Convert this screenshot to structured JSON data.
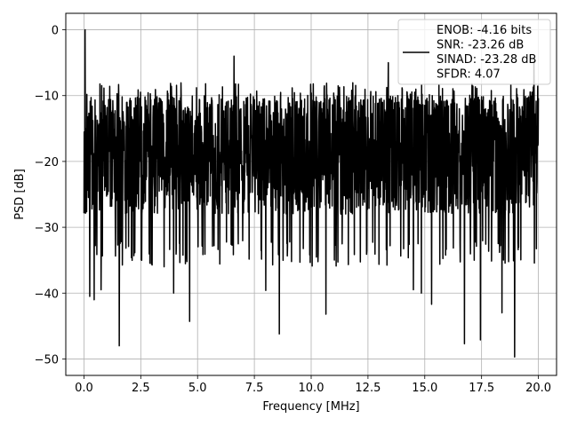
{
  "chart_data": {
    "type": "line",
    "xlabel": "Frequency [MHz]",
    "ylabel": "PSD [dB]",
    "xlim": [
      -0.8,
      20.8
    ],
    "ylim": [
      -52.5,
      2.5
    ],
    "xticks": [
      0,
      2.5,
      5,
      7.5,
      10,
      12.5,
      15,
      17.5,
      20
    ],
    "xtick_labels": [
      "0.0",
      "2.5",
      "5.0",
      "7.5",
      "10.0",
      "12.5",
      "15.0",
      "17.5",
      "20.0"
    ],
    "yticks": [
      0,
      -10,
      -20,
      -30,
      -40,
      -50
    ],
    "ytick_labels": [
      "0",
      "−10",
      "−20",
      "−30",
      "−40",
      "−50"
    ],
    "grid": true,
    "legend_position": "top-right",
    "legend": [
      "ENOB: -4.16 bits",
      "SNR: -23.26 dB",
      "SINAD: -23.28 dB",
      "SFDR: 4.07"
    ],
    "series": [
      {
        "color": "#000000",
        "x_range": [
          0,
          20
        ],
        "points": 2048,
        "typical_range": [
          -28,
          -10
        ],
        "notable_points": [
          {
            "x": 0.05,
            "y": 0
          },
          {
            "x": 0.25,
            "y": -40.5
          },
          {
            "x": 0.45,
            "y": -41
          },
          {
            "x": 0.75,
            "y": -39.5
          },
          {
            "x": 1.55,
            "y": -48
          },
          {
            "x": 3.95,
            "y": -40
          },
          {
            "x": 4.65,
            "y": -44.3
          },
          {
            "x": 6.6,
            "y": -4
          },
          {
            "x": 8.0,
            "y": -39.6
          },
          {
            "x": 8.6,
            "y": -46.2
          },
          {
            "x": 10.65,
            "y": -43.2
          },
          {
            "x": 13.4,
            "y": -5
          },
          {
            "x": 14.5,
            "y": -39.5
          },
          {
            "x": 14.85,
            "y": -40
          },
          {
            "x": 15.3,
            "y": -41.7
          },
          {
            "x": 16.75,
            "y": -47.7
          },
          {
            "x": 17.45,
            "y": -47.1
          },
          {
            "x": 18.4,
            "y": -43
          },
          {
            "x": 18.95,
            "y": -49.7
          },
          {
            "x": 19.8,
            "y": -4.8
          }
        ]
      }
    ]
  }
}
